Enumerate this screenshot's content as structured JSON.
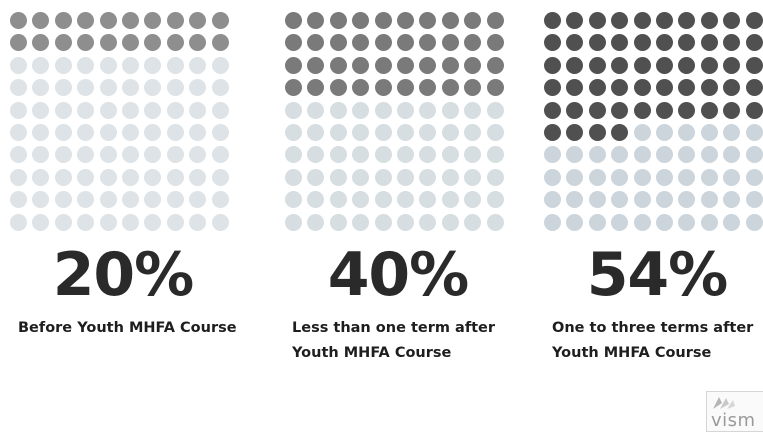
{
  "chart_data": [
    {
      "type": "waffle",
      "total": 100,
      "value": 20,
      "label": "20%",
      "caption_lines": [
        "Before Youth MHFA Course"
      ],
      "filled_color": "#8e8e8e",
      "empty_color": "#dde3e6"
    },
    {
      "type": "waffle",
      "total": 100,
      "value": 40,
      "label": "40%",
      "caption_lines": [
        "Less than one term after",
        "Youth MHFA Course"
      ],
      "filled_color": "#7a7a7a",
      "empty_color": "#d6dee2"
    },
    {
      "type": "waffle",
      "total": 100,
      "value": 54,
      "label": "54%",
      "caption_lines": [
        "One to three terms after",
        "Youth MHFA Course"
      ],
      "filled_color": "#505050",
      "empty_color": "#cbd5db"
    }
  ],
  "logo": {
    "text": "vism"
  }
}
